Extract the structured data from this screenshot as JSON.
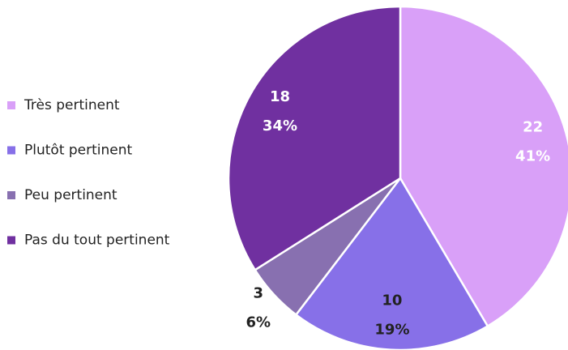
{
  "chart_data": {
    "type": "pie",
    "categories": [
      "Très pertinent",
      "Plutôt pertinent",
      "Peu pertinent",
      "Pas du tout pertinent"
    ],
    "values": [
      22,
      10,
      3,
      18
    ],
    "percent_labels": [
      "41%",
      "19%",
      "6%",
      "34%"
    ],
    "colors": [
      "#d9a0f8",
      "#8770e8",
      "#8870b0",
      "#7030a0"
    ],
    "label_colors": [
      "#ffffff",
      "#222222",
      "#222222",
      "#ffffff"
    ],
    "legend": "left"
  }
}
